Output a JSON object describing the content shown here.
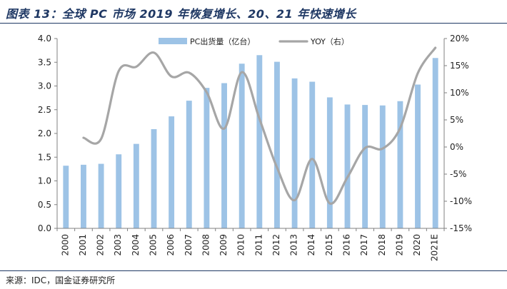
{
  "title": "图表 13：全球 PC 市场 2019 年恢复增长、20、21 年快速增长",
  "source": "来源：IDC，国金证券研究所",
  "chart_data": {
    "type": "bar+line",
    "categories": [
      "2000",
      "2001",
      "2002",
      "2003",
      "2004",
      "2005",
      "2006",
      "2007",
      "2008",
      "2009",
      "2010",
      "2011",
      "2012",
      "2013",
      "2014",
      "2015",
      "2016",
      "2017",
      "2018",
      "2019",
      "2020",
      "2021E"
    ],
    "series": [
      {
        "name": "PC出货量（亿台）",
        "type": "bar",
        "axis": "left",
        "color": "#9dc3e6",
        "values": [
          1.32,
          1.34,
          1.36,
          1.56,
          1.78,
          2.09,
          2.36,
          2.69,
          2.96,
          3.06,
          3.47,
          3.65,
          3.51,
          3.16,
          3.09,
          2.76,
          2.61,
          2.6,
          2.59,
          2.68,
          3.03,
          3.59
        ]
      },
      {
        "name": "YOY（右）",
        "type": "line",
        "axis": "right",
        "color": "#a6a6a6",
        "values": [
          null,
          1.7,
          1.5,
          14.0,
          14.8,
          17.4,
          13.0,
          13.7,
          10.1,
          3.4,
          13.8,
          5.2,
          -3.8,
          -9.8,
          -2.2,
          -10.4,
          -5.6,
          -0.2,
          -0.3,
          3.5,
          13.6,
          18.3
        ]
      }
    ],
    "ylim_left": [
      0,
      4.0
    ],
    "yticks_left": [
      "0.0",
      "0.5",
      "1.0",
      "1.5",
      "2.0",
      "2.5",
      "3.0",
      "3.5",
      "4.0"
    ],
    "ylim_right": [
      -15,
      20
    ],
    "yticks_right": [
      "-15%",
      "-10%",
      "-5%",
      "0%",
      "5%",
      "10%",
      "15%",
      "20%"
    ],
    "legend_position": "top-center",
    "grid": false
  }
}
